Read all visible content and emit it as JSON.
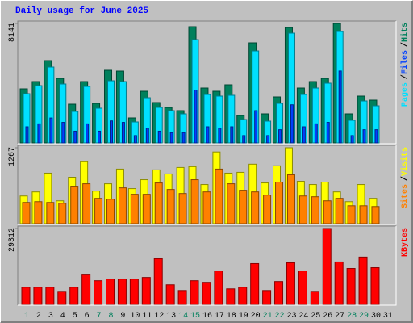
{
  "title": "Daily usage for June 2025",
  "categories": [
    "1",
    "2",
    "3",
    "4",
    "5",
    "6",
    "7",
    "8",
    "9",
    "10",
    "11",
    "12",
    "13",
    "14",
    "15",
    "16",
    "17",
    "18",
    "19",
    "20",
    "21",
    "22",
    "23",
    "24",
    "25",
    "26",
    "27",
    "28",
    "29",
    "30",
    "31"
  ],
  "category_colors": [
    "#00805c",
    "#000000",
    "#000000",
    "#000000",
    "#000000",
    "#000000",
    "#00805c",
    "#00805c",
    "#000000",
    "#000000",
    "#000000",
    "#000000",
    "#000000",
    "#00805c",
    "#00805c",
    "#000000",
    "#000000",
    "#000000",
    "#000000",
    "#000000",
    "#00805c",
    "#00805c",
    "#000000",
    "#000000",
    "#000000",
    "#000000",
    "#000000",
    "#00805c",
    "#00805c",
    "#000000",
    "#000000"
  ],
  "separator": "/",
  "chart_data": [
    {
      "type": "bar",
      "ylim": [
        0,
        8141
      ],
      "yticks": [
        8141
      ],
      "series": [
        {
          "name": "Hits",
          "color": "#00805c",
          "values": [
            3685,
            4180,
            5610,
            4400,
            2640,
            4180,
            2695,
            4950,
            4895,
            1705,
            3520,
            2750,
            2420,
            2200,
            7920,
            3740,
            3520,
            3960,
            1870,
            6820,
            1980,
            3135,
            7865,
            3740,
            4180,
            4400,
            8141,
            1980,
            3190,
            2915,
            null
          ]
        },
        {
          "name": "Files",
          "color": "#0040ff",
          "values": [
            1100,
            1300,
            1700,
            1400,
            800,
            1300,
            800,
            1500,
            1400,
            500,
            1000,
            800,
            700,
            700,
            3600,
            1100,
            1000,
            1100,
            500,
            2200,
            500,
            900,
            2600,
            1100,
            1300,
            1400,
            4900,
            500,
            900,
            900,
            null
          ]
        },
        {
          "name": "Pages",
          "color": "#00e0ff",
          "values": [
            3355,
            3905,
            5170,
            4015,
            2145,
            3850,
            2365,
            4235,
            4180,
            1430,
            3080,
            2420,
            2200,
            1980,
            7040,
            3300,
            3190,
            3245,
            1595,
            6270,
            1485,
            2695,
            7480,
            3300,
            3740,
            4070,
            7590,
            1540,
            2860,
            2530,
            null
          ]
        }
      ]
    },
    {
      "type": "bar",
      "ylim": [
        0,
        1267
      ],
      "yticks": [
        1267
      ],
      "series": [
        {
          "name": "Visits",
          "color": "#ffff00",
          "values": [
            462,
            530,
            843,
            381,
            775,
            1034,
            544,
            666,
            911,
            585,
            734,
            898,
            830,
            938,
            952,
            653,
            1197,
            843,
            857,
            993,
            680,
            966,
            1267,
            707,
            653,
            694,
            530,
            367,
            653,
            422,
            null
          ]
        },
        {
          "name": "Sites",
          "color": "#ff8000",
          "values": [
            354,
            367,
            354,
            340,
            626,
            666,
            422,
            408,
            598,
            490,
            490,
            680,
            571,
            503,
            734,
            530,
            911,
            666,
            558,
            530,
            476,
            694,
            816,
            462,
            449,
            381,
            422,
            299,
            299,
            286,
            null
          ]
        }
      ]
    },
    {
      "type": "bar",
      "ylim": [
        0,
        29312
      ],
      "yticks": [
        29312
      ],
      "series": [
        {
          "name": "KBytes",
          "color": "#ff0000",
          "values": [
            6620,
            6620,
            6620,
            5040,
            6620,
            11660,
            9140,
            9770,
            9770,
            9770,
            10400,
            17650,
            7560,
            5360,
            9140,
            8510,
            12920,
            5990,
            6620,
            15760,
            5360,
            8830,
            16080,
            12920,
            5040,
            29312,
            16390,
            13870,
            18280,
            14180,
            null
          ]
        }
      ]
    }
  ]
}
